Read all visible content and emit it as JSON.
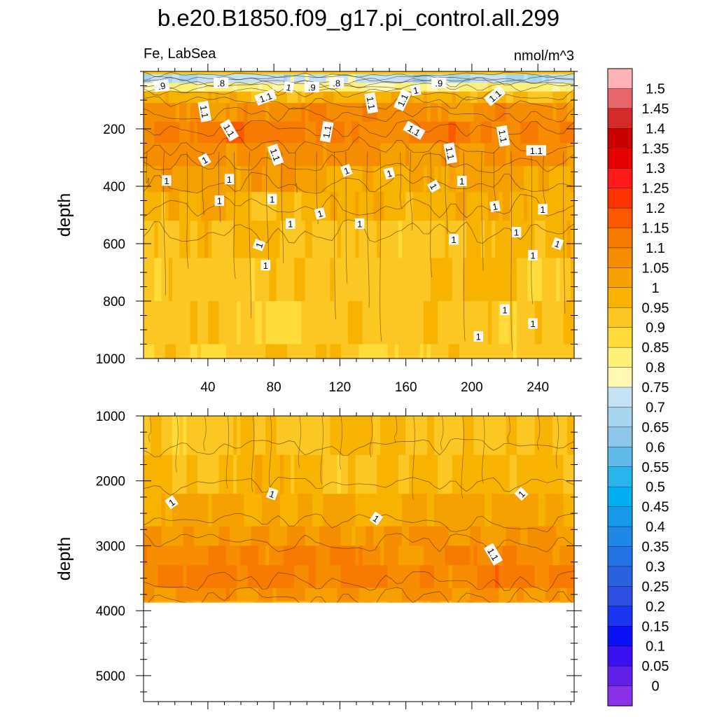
{
  "chart_data": {
    "type": "heatmap",
    "title": "b.e20.B1850.f09_g17.pi_control.all.299",
    "subtitle_left": "Fe, LabSea",
    "subtitle_right": "nmol/m^3",
    "x_range": [
      1,
      262
    ],
    "x_ticks": [
      40,
      80,
      120,
      160,
      200,
      240
    ],
    "panels": [
      {
        "name": "upper",
        "ylabel": "depth",
        "ylim": [
          0,
          1000
        ],
        "y_ticks": [
          200,
          400,
          600,
          800,
          1000
        ],
        "depth_bands": [
          {
            "depth": 10,
            "value": 0.72
          },
          {
            "depth": 40,
            "value": 0.82
          },
          {
            "depth": 70,
            "value": 0.98
          },
          {
            "depth": 110,
            "value": 1.08
          },
          {
            "depth": 175,
            "value": 1.12
          },
          {
            "depth": 250,
            "value": 1.06
          },
          {
            "depth": 330,
            "value": 1.02
          },
          {
            "depth": 420,
            "value": 0.99
          },
          {
            "depth": 520,
            "value": 0.96
          },
          {
            "depth": 650,
            "value": 0.94
          },
          {
            "depth": 800,
            "value": 0.93
          },
          {
            "depth": 950,
            "value": 0.92
          }
        ],
        "contour_labels": [
          {
            "text": ".9",
            "x": 12,
            "depth": 50,
            "angle": -10
          },
          {
            "text": ".8",
            "x": 48,
            "depth": 40,
            "angle": 0
          },
          {
            "text": "1.1",
            "x": 75,
            "depth": 90,
            "angle": -20
          },
          {
            "text": "1",
            "x": 89,
            "depth": 55,
            "angle": 10
          },
          {
            "text": ".9",
            "x": 103,
            "depth": 55,
            "angle": 0
          },
          {
            "text": ".8",
            "x": 118,
            "depth": 40,
            "angle": 0
          },
          {
            "text": "1.1",
            "x": 139,
            "depth": 110,
            "angle": 80
          },
          {
            "text": "1.1",
            "x": 158,
            "depth": 100,
            "angle": -65
          },
          {
            "text": "1",
            "x": 166,
            "depth": 65,
            "angle": -10
          },
          {
            "text": ".9",
            "x": 180,
            "depth": 40,
            "angle": 0
          },
          {
            "text": "1.1",
            "x": 214,
            "depth": 85,
            "angle": -40
          },
          {
            "text": "1.1",
            "x": 38,
            "depth": 140,
            "angle": 80
          },
          {
            "text": "1.1",
            "x": 53,
            "depth": 205,
            "angle": 60
          },
          {
            "text": "1.1",
            "x": 112,
            "depth": 210,
            "angle": -80
          },
          {
            "text": "1.1",
            "x": 165,
            "depth": 205,
            "angle": 30
          },
          {
            "text": "1.1",
            "x": 81,
            "depth": 290,
            "angle": 70
          },
          {
            "text": "1.1",
            "x": 187,
            "depth": 285,
            "angle": 80
          },
          {
            "text": "1.1",
            "x": 219,
            "depth": 225,
            "angle": 80
          },
          {
            "text": "1.1",
            "x": 239,
            "depth": 275,
            "angle": 0
          },
          {
            "text": "1",
            "x": 38,
            "depth": 308,
            "angle": -30
          },
          {
            "text": "1",
            "x": 15,
            "depth": 380,
            "angle": 0
          },
          {
            "text": "1",
            "x": 53,
            "depth": 375,
            "angle": 0
          },
          {
            "text": "1",
            "x": 124,
            "depth": 345,
            "angle": -20
          },
          {
            "text": "1",
            "x": 150,
            "depth": 355,
            "angle": -15
          },
          {
            "text": "1",
            "x": 177,
            "depth": 400,
            "angle": 60
          },
          {
            "text": "1",
            "x": 194,
            "depth": 382,
            "angle": 0
          },
          {
            "text": "1",
            "x": 47,
            "depth": 450,
            "angle": 0
          },
          {
            "text": "1",
            "x": 79,
            "depth": 445,
            "angle": 0
          },
          {
            "text": "1",
            "x": 108,
            "depth": 495,
            "angle": -15
          },
          {
            "text": "1",
            "x": 90,
            "depth": 530,
            "angle": 0
          },
          {
            "text": "1",
            "x": 132,
            "depth": 530,
            "angle": 0
          },
          {
            "text": "1",
            "x": 214,
            "depth": 470,
            "angle": -10
          },
          {
            "text": "1",
            "x": 243,
            "depth": 480,
            "angle": 0
          },
          {
            "text": "1",
            "x": 71,
            "depth": 605,
            "angle": -70
          },
          {
            "text": "1",
            "x": 189,
            "depth": 585,
            "angle": 0
          },
          {
            "text": "1",
            "x": 227,
            "depth": 560,
            "angle": 0
          },
          {
            "text": "1",
            "x": 252,
            "depth": 600,
            "angle": 20
          },
          {
            "text": "1",
            "x": 75,
            "depth": 675,
            "angle": 0
          },
          {
            "text": "1",
            "x": 237,
            "depth": 640,
            "angle": 0
          },
          {
            "text": "1",
            "x": 220,
            "depth": 830,
            "angle": 0
          },
          {
            "text": "1",
            "x": 237,
            "depth": 878,
            "angle": 0
          },
          {
            "text": "1",
            "x": 204,
            "depth": 923,
            "angle": 0
          }
        ]
      },
      {
        "name": "lower",
        "ylabel": "depth",
        "ylim": [
          1000,
          5400
        ],
        "y_ticks": [
          1000,
          2000,
          3000,
          4000,
          5000
        ],
        "data_bottom_depth": 3875,
        "depth_bands": [
          {
            "depth": 1000,
            "value": 0.94
          },
          {
            "depth": 1600,
            "value": 0.96
          },
          {
            "depth": 2200,
            "value": 1.0
          },
          {
            "depth": 2700,
            "value": 1.04
          },
          {
            "depth": 3000,
            "value": 1.08
          },
          {
            "depth": 3300,
            "value": 1.1
          },
          {
            "depth": 3650,
            "value": 1.05
          },
          {
            "depth": 3850,
            "value": 1.0
          }
        ],
        "contour_labels": [
          {
            "text": "1",
            "x": 18,
            "depth": 2330,
            "angle": -35
          },
          {
            "text": "1",
            "x": 79,
            "depth": 2200,
            "angle": 20
          },
          {
            "text": "1",
            "x": 142,
            "depth": 2580,
            "angle": 35
          },
          {
            "text": "1",
            "x": 230,
            "depth": 2200,
            "angle": -45
          },
          {
            "text": "1.1",
            "x": 213,
            "depth": 3130,
            "angle": 60
          }
        ]
      }
    ],
    "colorbar": {
      "levels": [
        "1.5",
        "1.45",
        "1.4",
        "1.35",
        "1.3",
        "1.25",
        "1.2",
        "1.15",
        "1.1",
        "1.05",
        "1",
        "0.95",
        "0.9",
        "0.85",
        "0.8",
        "0.75",
        "0.7",
        "0.65",
        "0.6",
        "0.55",
        "0.5",
        "0.45",
        "0.4",
        "0.35",
        "0.3",
        "0.25",
        "0.2",
        "0.15",
        "0.1",
        "0.05",
        "0"
      ],
      "colors": [
        "#ffb3b8",
        "#e8666a",
        "#d42a2a",
        "#cc0000",
        "#e60000",
        "#ff1a1a",
        "#ff3300",
        "#fb5800",
        "#f77a00",
        "#f68d00",
        "#f6a100",
        "#f8b200",
        "#fcc722",
        "#ffdc3a",
        "#ffef7b",
        "#fff8b3",
        "#c4e2f3",
        "#a7d4ee",
        "#8ec6e9",
        "#5fbcea",
        "#28b5ec",
        "#00b0f0",
        "#1599e8",
        "#2188e8",
        "#2474e6",
        "#2a62de",
        "#2e4ee0",
        "#1c35f0",
        "#0a10f8",
        "#3a10f0",
        "#6020e8",
        "#8a32e8"
      ]
    }
  }
}
